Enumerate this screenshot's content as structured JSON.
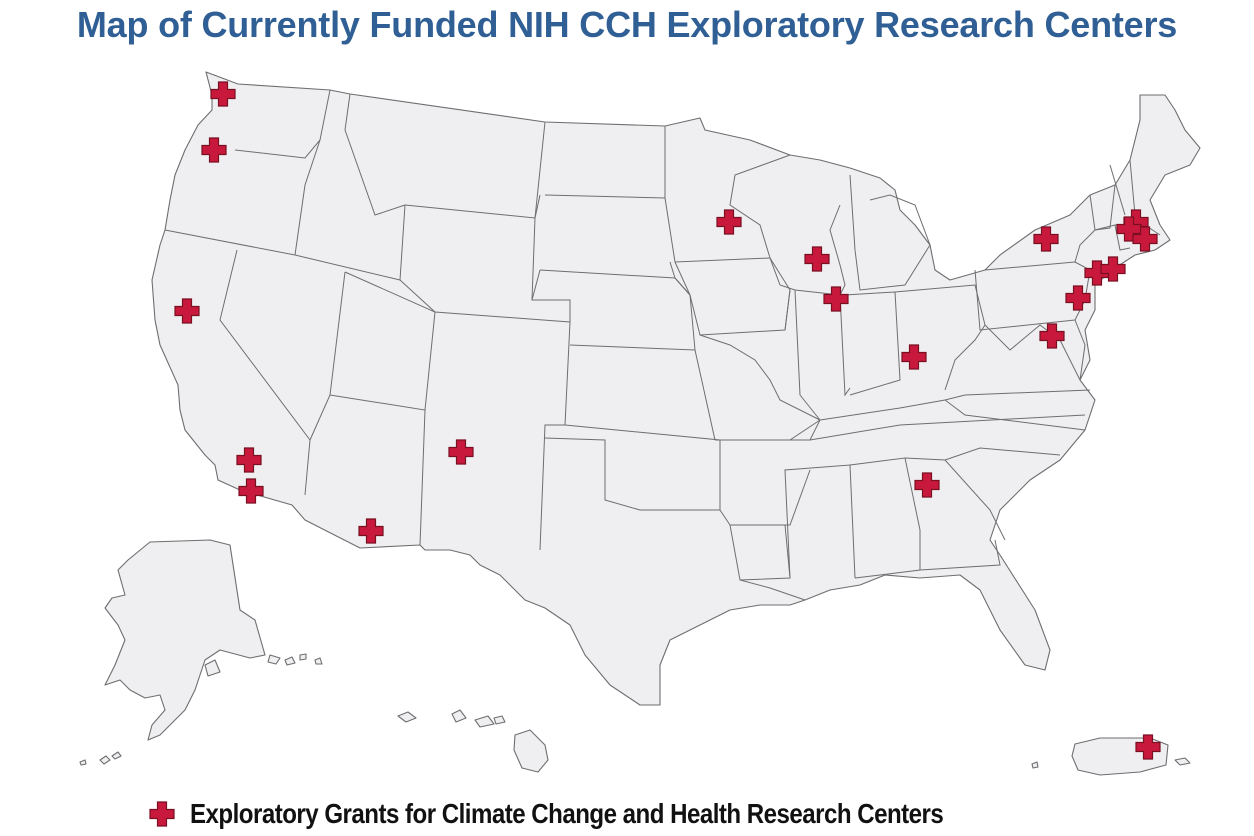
{
  "title": "Map of Currently Funded NIH CCH Exploratory Research Centers",
  "legend": {
    "label": "Exploratory Grants for Climate Change and Health Research Centers",
    "marker_icon": "red-cross-icon",
    "marker_color": "#c8193c"
  },
  "markers": [
    {
      "region": "Washington (Seattle)"
    },
    {
      "region": "Oregon (Portland)"
    },
    {
      "region": "California (Bay Area)"
    },
    {
      "region": "California (Los Angeles)"
    },
    {
      "region": "California (Orange County)"
    },
    {
      "region": "Arizona (Tucson)"
    },
    {
      "region": "New Mexico (Albuquerque)"
    },
    {
      "region": "Minnesota (Minneapolis)"
    },
    {
      "region": "Wisconsin (Madison)"
    },
    {
      "region": "Illinois (Chicago)"
    },
    {
      "region": "Kentucky (Louisville)"
    },
    {
      "region": "Georgia (Atlanta)"
    },
    {
      "region": "New York (Rochester)"
    },
    {
      "region": "New York City"
    },
    {
      "region": "New York City"
    },
    {
      "region": "Pennsylvania (Philadelphia)"
    },
    {
      "region": "Maryland (Baltimore)"
    },
    {
      "region": "Massachusetts (Boston)"
    },
    {
      "region": "Massachusetts (Boston)"
    },
    {
      "region": "Rhode Island (Providence)"
    },
    {
      "region": "Puerto Rico (San Juan)"
    }
  ]
}
